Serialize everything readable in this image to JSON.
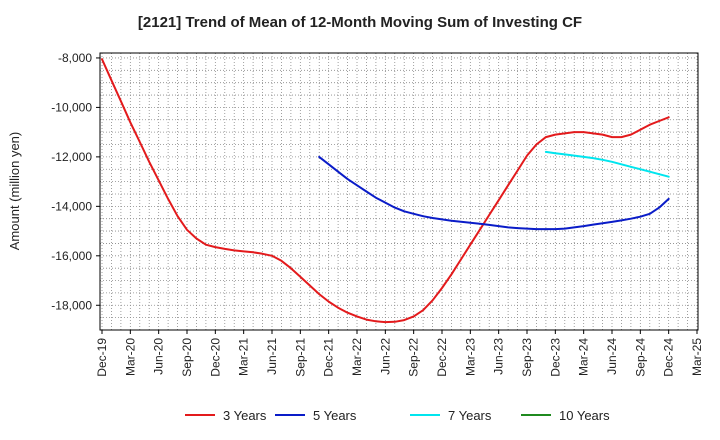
{
  "chart_data": {
    "type": "line",
    "title": "[2121]  Trend of Mean of 12-Month Moving Sum of Investing CF",
    "xlabel": "",
    "ylabel": "Amount (million yen)",
    "ylim": [
      -19000,
      -7800
    ],
    "yticks": [
      -8000,
      -10000,
      -12000,
      -14000,
      -16000,
      -18000
    ],
    "ytick_labels": [
      "-8,000",
      "-10,000",
      "-12,000",
      "-14,000",
      "-16,000",
      "-18,000"
    ],
    "xticks": [
      "Dec-19",
      "Mar-20",
      "Jun-20",
      "Sep-20",
      "Dec-20",
      "Mar-21",
      "Jun-21",
      "Sep-21",
      "Dec-21",
      "Mar-22",
      "Jun-22",
      "Sep-22",
      "Dec-22",
      "Mar-23",
      "Jun-23",
      "Sep-23",
      "Dec-23",
      "Mar-24",
      "Jun-24",
      "Sep-24",
      "Dec-24",
      "Mar-25"
    ],
    "grid": true,
    "legend_position": "bottom",
    "series": [
      {
        "name": "3 Years",
        "color": "#e31a1c",
        "points": [
          [
            "Dec-19",
            -8050
          ],
          [
            "Jan-20",
            -8900
          ],
          [
            "Feb-20",
            -9750
          ],
          [
            "Mar-20",
            -10600
          ],
          [
            "Apr-20",
            -11400
          ],
          [
            "May-20",
            -12200
          ],
          [
            "Jun-20",
            -12950
          ],
          [
            "Jul-20",
            -13700
          ],
          [
            "Aug-20",
            -14400
          ],
          [
            "Sep-20",
            -14950
          ],
          [
            "Oct-20",
            -15300
          ],
          [
            "Nov-20",
            -15550
          ],
          [
            "Dec-20",
            -15650
          ],
          [
            "Jan-21",
            -15720
          ],
          [
            "Feb-21",
            -15780
          ],
          [
            "Mar-21",
            -15820
          ],
          [
            "Apr-21",
            -15860
          ],
          [
            "May-21",
            -15920
          ],
          [
            "Jun-21",
            -16000
          ],
          [
            "Jul-21",
            -16200
          ],
          [
            "Aug-21",
            -16500
          ],
          [
            "Sep-21",
            -16850
          ],
          [
            "Oct-21",
            -17200
          ],
          [
            "Nov-21",
            -17550
          ],
          [
            "Dec-21",
            -17850
          ],
          [
            "Jan-22",
            -18100
          ],
          [
            "Feb-22",
            -18300
          ],
          [
            "Mar-22",
            -18450
          ],
          [
            "Apr-22",
            -18580
          ],
          [
            "May-22",
            -18650
          ],
          [
            "Jun-22",
            -18680
          ],
          [
            "Jul-22",
            -18670
          ],
          [
            "Aug-22",
            -18600
          ],
          [
            "Sep-22",
            -18450
          ],
          [
            "Oct-22",
            -18200
          ],
          [
            "Nov-22",
            -17800
          ],
          [
            "Dec-22",
            -17300
          ],
          [
            "Jan-23",
            -16750
          ],
          [
            "Feb-23",
            -16150
          ],
          [
            "Mar-23",
            -15550
          ],
          [
            "Apr-23",
            -14950
          ],
          [
            "May-23",
            -14350
          ],
          [
            "Jun-23",
            -13750
          ],
          [
            "Jul-23",
            -13150
          ],
          [
            "Aug-23",
            -12550
          ],
          [
            "Sep-23",
            -11950
          ],
          [
            "Oct-23",
            -11500
          ],
          [
            "Nov-23",
            -11200
          ],
          [
            "Dec-23",
            -11100
          ],
          [
            "Jan-24",
            -11050
          ],
          [
            "Feb-24",
            -11000
          ],
          [
            "Mar-24",
            -11000
          ],
          [
            "Apr-24",
            -11050
          ],
          [
            "May-24",
            -11100
          ],
          [
            "Jun-24",
            -11200
          ],
          [
            "Jul-24",
            -11200
          ],
          [
            "Aug-24",
            -11100
          ],
          [
            "Sep-24",
            -10900
          ],
          [
            "Oct-24",
            -10700
          ],
          [
            "Nov-24",
            -10550
          ],
          [
            "Dec-24",
            -10400
          ]
        ]
      },
      {
        "name": "5 Years",
        "color": "#0a1cc8",
        "points": [
          [
            "Nov-21",
            -12000
          ],
          [
            "Dec-21",
            -12300
          ],
          [
            "Jan-22",
            -12600
          ],
          [
            "Feb-22",
            -12900
          ],
          [
            "Mar-22",
            -13150
          ],
          [
            "Apr-22",
            -13400
          ],
          [
            "May-22",
            -13650
          ],
          [
            "Jun-22",
            -13850
          ],
          [
            "Jul-22",
            -14050
          ],
          [
            "Aug-22",
            -14200
          ],
          [
            "Sep-22",
            -14300
          ],
          [
            "Oct-22",
            -14400
          ],
          [
            "Nov-22",
            -14470
          ],
          [
            "Dec-22",
            -14530
          ],
          [
            "Jan-23",
            -14580
          ],
          [
            "Feb-23",
            -14620
          ],
          [
            "Mar-23",
            -14660
          ],
          [
            "Apr-23",
            -14700
          ],
          [
            "May-23",
            -14750
          ],
          [
            "Jun-23",
            -14800
          ],
          [
            "Jul-23",
            -14850
          ],
          [
            "Aug-23",
            -14880
          ],
          [
            "Sep-23",
            -14900
          ],
          [
            "Oct-23",
            -14920
          ],
          [
            "Nov-23",
            -14920
          ],
          [
            "Dec-23",
            -14920
          ],
          [
            "Jan-24",
            -14900
          ],
          [
            "Feb-24",
            -14850
          ],
          [
            "Mar-24",
            -14800
          ],
          [
            "Apr-24",
            -14740
          ],
          [
            "May-24",
            -14680
          ],
          [
            "Jun-24",
            -14630
          ],
          [
            "Jul-24",
            -14570
          ],
          [
            "Aug-24",
            -14500
          ],
          [
            "Sep-24",
            -14420
          ],
          [
            "Oct-24",
            -14300
          ],
          [
            "Nov-24",
            -14050
          ],
          [
            "Dec-24",
            -13700
          ]
        ]
      },
      {
        "name": "7 Years",
        "color": "#00e5ee",
        "points": [
          [
            "Nov-23",
            -11800
          ],
          [
            "Dec-23",
            -11850
          ],
          [
            "Jan-24",
            -11900
          ],
          [
            "Feb-24",
            -11950
          ],
          [
            "Mar-24",
            -12000
          ],
          [
            "Apr-24",
            -12050
          ],
          [
            "May-24",
            -12120
          ],
          [
            "Jun-24",
            -12200
          ],
          [
            "Jul-24",
            -12300
          ],
          [
            "Aug-24",
            -12400
          ],
          [
            "Sep-24",
            -12500
          ],
          [
            "Oct-24",
            -12600
          ],
          [
            "Nov-24",
            -12700
          ],
          [
            "Dec-24",
            -12800
          ]
        ]
      },
      {
        "name": "10 Years",
        "color": "#1f8a1f",
        "points": []
      }
    ]
  }
}
